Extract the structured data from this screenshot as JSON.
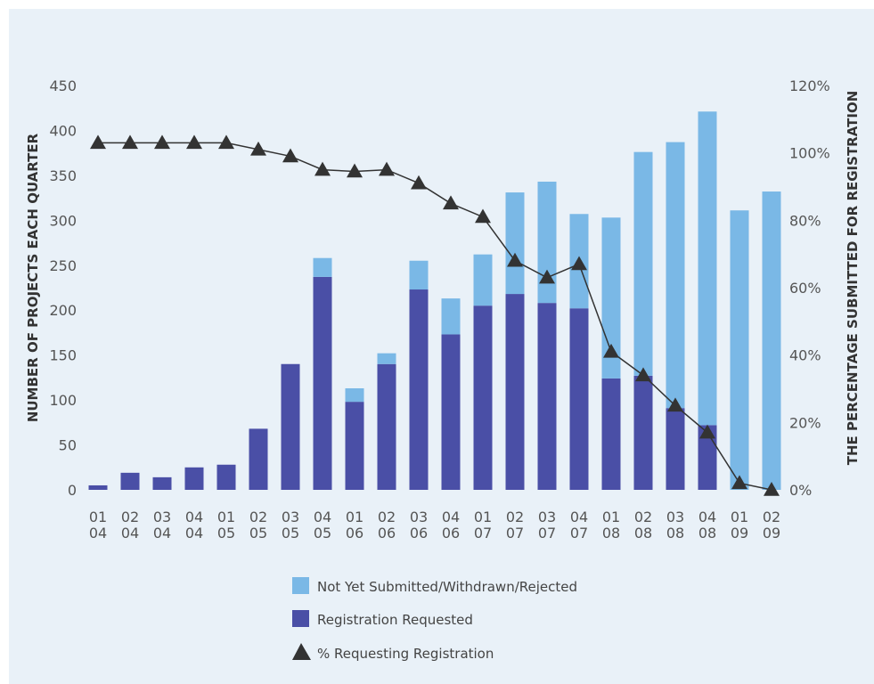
{
  "chart_data": {
    "type": "bar",
    "title": "",
    "ylabel": "NUMBER OF PROJECTS EACH QUARTER",
    "y2label": "THE PERCENTAGE SUBMITTED FOR REGISTRATION",
    "ylim": [
      0,
      450
    ],
    "y2lim": [
      0,
      120
    ],
    "yticks": [
      "0",
      "50",
      "100",
      "150",
      "200",
      "250",
      "300",
      "350",
      "400",
      "450"
    ],
    "y2ticks": [
      "0%",
      "20%",
      "40%",
      "60%",
      "80%",
      "100%",
      "120%"
    ],
    "categories": [
      [
        "01",
        "04"
      ],
      [
        "02",
        "04"
      ],
      [
        "03",
        "04"
      ],
      [
        "04",
        "04"
      ],
      [
        "01",
        "05"
      ],
      [
        "02",
        "05"
      ],
      [
        "03",
        "05"
      ],
      [
        "04",
        "05"
      ],
      [
        "01",
        "06"
      ],
      [
        "02",
        "06"
      ],
      [
        "03",
        "06"
      ],
      [
        "04",
        "06"
      ],
      [
        "01",
        "07"
      ],
      [
        "02",
        "07"
      ],
      [
        "03",
        "07"
      ],
      [
        "04",
        "07"
      ],
      [
        "01",
        "08"
      ],
      [
        "02",
        "08"
      ],
      [
        "03",
        "08"
      ],
      [
        "04",
        "08"
      ],
      [
        "01",
        "09"
      ],
      [
        "02",
        "09"
      ]
    ],
    "series": [
      {
        "name": "Registration Requested",
        "type": "bar",
        "stack": 0,
        "color": "#4a4fa6",
        "values": [
          5,
          19,
          14,
          25,
          28,
          68,
          140,
          237,
          98,
          140,
          223,
          173,
          205,
          218,
          208,
          202,
          124,
          127,
          91,
          72,
          0,
          0
        ]
      },
      {
        "name": "Not Yet Submitted/Withdrawn/Rejected",
        "type": "bar",
        "stack": 1,
        "color": "#7ab8e6",
        "values": [
          0,
          0,
          0,
          0,
          0,
          0,
          0,
          21,
          15,
          12,
          32,
          40,
          57,
          113,
          135,
          105,
          179,
          249,
          296,
          349,
          311,
          332
        ]
      },
      {
        "name": "% Requesting Registration",
        "type": "line",
        "axis": "right",
        "marker": "triangle",
        "color": "#333333",
        "values": [
          103,
          103,
          103,
          103,
          103,
          101,
          99,
          95,
          94.5,
          95,
          91,
          85,
          81,
          68,
          63,
          67,
          41,
          34,
          25,
          17,
          2,
          0
        ]
      }
    ],
    "legend": [
      {
        "label": "Not Yet Submitted/Withdrawn/Rejected",
        "color": "#7ab8e6",
        "marker": "square"
      },
      {
        "label": "Registration Requested",
        "color": "#4a4fa6",
        "marker": "square"
      },
      {
        "label": "% Requesting Registration",
        "color": "#333333",
        "marker": "triangle"
      }
    ],
    "legend_position": "bottom-center",
    "grid": false
  }
}
